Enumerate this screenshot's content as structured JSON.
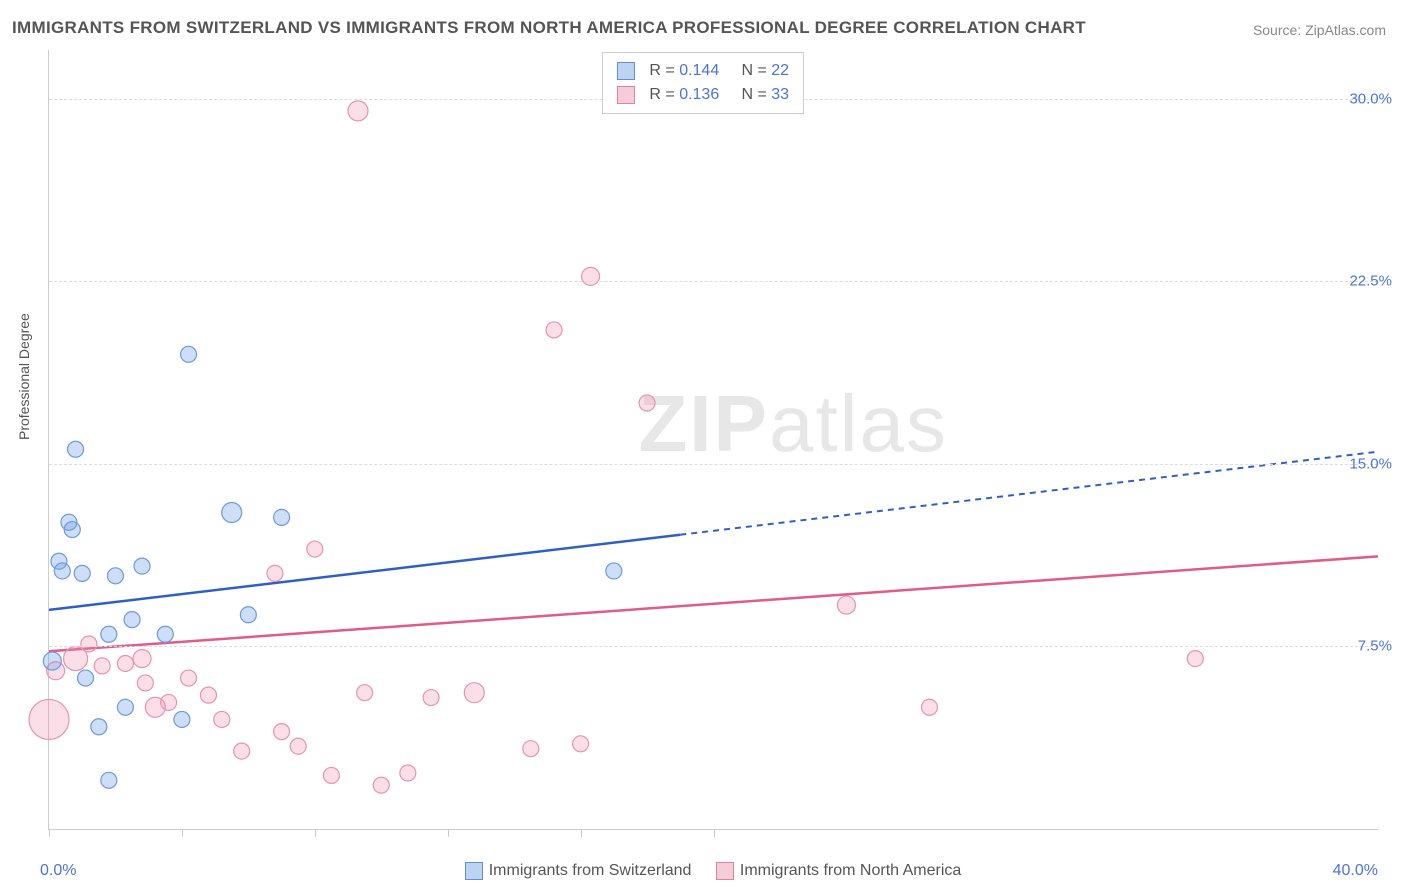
{
  "title": "IMMIGRANTS FROM SWITZERLAND VS IMMIGRANTS FROM NORTH AMERICA PROFESSIONAL DEGREE CORRELATION CHART",
  "source_prefix": "Source: ",
  "source_name": "ZipAtlas.com",
  "watermark_bold": "ZIP",
  "watermark_rest": "atlas",
  "y_axis_label": "Professional Degree",
  "axes": {
    "xlim": [
      0,
      40
    ],
    "ylim": [
      0,
      32
    ],
    "x_min_label": "0.0%",
    "x_max_label": "40.0%",
    "y_ticks": [
      7.5,
      15.0,
      22.5,
      30.0
    ],
    "y_tick_labels": [
      "7.5%",
      "15.0%",
      "22.5%",
      "30.0%"
    ],
    "x_tick_positions": [
      0,
      4,
      8,
      12,
      16,
      20
    ],
    "grid_color": "#dddddd",
    "axis_color": "#cccccc",
    "background_color": "#ffffff"
  },
  "series": {
    "switzerland": {
      "label": "Immigrants from Switzerland",
      "swatch_fill": "#bcd3f2",
      "swatch_border": "#5d8fdc",
      "point_fill": "rgba(112,160,230,0.35)",
      "point_stroke": "#6a9ae0",
      "line_color": "#2e5fc6",
      "line_solid_to_x": 19,
      "trend_start_y": 9.0,
      "trend_end_y": 15.5,
      "R_label": "R = ",
      "R_value": "0.144",
      "N_label": "N = ",
      "N_value": "22",
      "points": [
        {
          "x": 0.1,
          "y": 6.9,
          "r": 9
        },
        {
          "x": 0.3,
          "y": 11.0,
          "r": 8
        },
        {
          "x": 0.4,
          "y": 10.6,
          "r": 8
        },
        {
          "x": 0.6,
          "y": 12.6,
          "r": 8
        },
        {
          "x": 0.7,
          "y": 12.3,
          "r": 8
        },
        {
          "x": 0.8,
          "y": 15.6,
          "r": 8
        },
        {
          "x": 1.0,
          "y": 10.5,
          "r": 8
        },
        {
          "x": 1.1,
          "y": 6.2,
          "r": 8
        },
        {
          "x": 1.5,
          "y": 4.2,
          "r": 8
        },
        {
          "x": 1.8,
          "y": 8.0,
          "r": 8
        },
        {
          "x": 1.8,
          "y": 2.0,
          "r": 8
        },
        {
          "x": 2.0,
          "y": 10.4,
          "r": 8
        },
        {
          "x": 2.3,
          "y": 5.0,
          "r": 8
        },
        {
          "x": 2.5,
          "y": 8.6,
          "r": 8
        },
        {
          "x": 2.8,
          "y": 10.8,
          "r": 8
        },
        {
          "x": 3.5,
          "y": 8.0,
          "r": 8
        },
        {
          "x": 4.0,
          "y": 4.5,
          "r": 8
        },
        {
          "x": 4.2,
          "y": 19.5,
          "r": 8
        },
        {
          "x": 5.5,
          "y": 13.0,
          "r": 10
        },
        {
          "x": 6.0,
          "y": 8.8,
          "r": 8
        },
        {
          "x": 7.0,
          "y": 12.8,
          "r": 8
        },
        {
          "x": 17.0,
          "y": 10.6,
          "r": 8
        }
      ]
    },
    "north_america": {
      "label": "Immigrants from North America",
      "swatch_fill": "#f5cdd8",
      "swatch_border": "#e37fa0",
      "point_fill": "rgba(240,150,180,0.30)",
      "point_stroke": "#e892b0",
      "line_color": "#e05a8a",
      "trend_start_y": 7.3,
      "trend_end_y": 11.2,
      "R_label": "R = ",
      "R_value": "0.136",
      "N_label": "N = ",
      "N_value": "33",
      "points": [
        {
          "x": 0.0,
          "y": 4.5,
          "r": 20
        },
        {
          "x": 0.2,
          "y": 6.5,
          "r": 9
        },
        {
          "x": 0.8,
          "y": 7.0,
          "r": 12
        },
        {
          "x": 1.2,
          "y": 7.6,
          "r": 8
        },
        {
          "x": 1.6,
          "y": 6.7,
          "r": 8
        },
        {
          "x": 2.3,
          "y": 6.8,
          "r": 8
        },
        {
          "x": 2.8,
          "y": 7.0,
          "r": 9
        },
        {
          "x": 2.9,
          "y": 6.0,
          "r": 8
        },
        {
          "x": 3.2,
          "y": 5.0,
          "r": 10
        },
        {
          "x": 3.6,
          "y": 5.2,
          "r": 8
        },
        {
          "x": 4.2,
          "y": 6.2,
          "r": 8
        },
        {
          "x": 4.8,
          "y": 5.5,
          "r": 8
        },
        {
          "x": 5.2,
          "y": 4.5,
          "r": 8
        },
        {
          "x": 5.8,
          "y": 3.2,
          "r": 8
        },
        {
          "x": 6.8,
          "y": 10.5,
          "r": 8
        },
        {
          "x": 7.0,
          "y": 4.0,
          "r": 8
        },
        {
          "x": 7.5,
          "y": 3.4,
          "r": 8
        },
        {
          "x": 8.0,
          "y": 11.5,
          "r": 8
        },
        {
          "x": 8.5,
          "y": 2.2,
          "r": 8
        },
        {
          "x": 9.3,
          "y": 29.5,
          "r": 10
        },
        {
          "x": 9.5,
          "y": 5.6,
          "r": 8
        },
        {
          "x": 10.0,
          "y": 1.8,
          "r": 8
        },
        {
          "x": 10.8,
          "y": 2.3,
          "r": 8
        },
        {
          "x": 11.5,
          "y": 5.4,
          "r": 8
        },
        {
          "x": 12.8,
          "y": 5.6,
          "r": 10
        },
        {
          "x": 14.5,
          "y": 3.3,
          "r": 8
        },
        {
          "x": 15.2,
          "y": 20.5,
          "r": 8
        },
        {
          "x": 16.0,
          "y": 3.5,
          "r": 8
        },
        {
          "x": 16.3,
          "y": 22.7,
          "r": 9
        },
        {
          "x": 18.0,
          "y": 17.5,
          "r": 8
        },
        {
          "x": 24.0,
          "y": 9.2,
          "r": 9
        },
        {
          "x": 26.5,
          "y": 5.0,
          "r": 8
        },
        {
          "x": 34.5,
          "y": 7.0,
          "r": 8
        }
      ]
    }
  }
}
